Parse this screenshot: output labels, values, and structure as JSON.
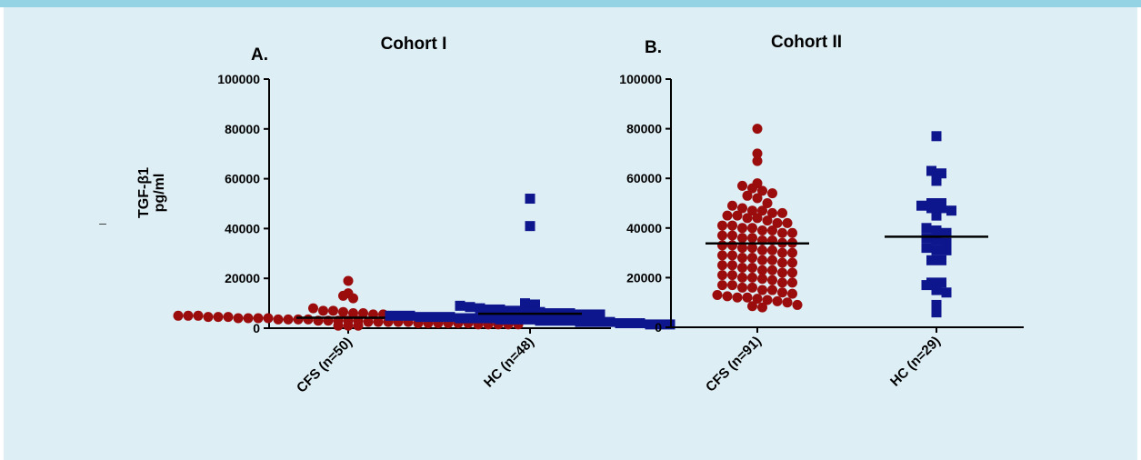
{
  "colors": {
    "background": "#ffffff",
    "panel": "#ddeef5",
    "top_bar": "#94d3e3",
    "cfs": "#9b0d0d",
    "hc": "#0e168e",
    "mean_line": "#000000"
  },
  "y_axis_title": [
    "TGF-β1",
    "pg/ml"
  ],
  "stray_mark": "–",
  "chart_data": [
    {
      "type": "scatter",
      "panel_label": "A.",
      "title": "Cohort I",
      "ylim": [
        0,
        100000
      ],
      "yticks": [
        "0",
        "20000",
        "40000",
        "60000",
        "80000",
        "100000"
      ],
      "categories": [
        "CFS (n=50)",
        "HC (n=48)"
      ],
      "series": [
        {
          "name": "CFS (n=50)",
          "marker": "circle",
          "mean": 4200,
          "values": [
            19000,
            14000,
            13000,
            12000,
            8000,
            7000,
            7000,
            6500,
            6000,
            6000,
            5500,
            5500,
            5000,
            5000,
            5000,
            4500,
            4500,
            4500,
            4000,
            4000,
            4000,
            4000,
            3500,
            3500,
            3500,
            3500,
            3000,
            3000,
            3000,
            3000,
            3000,
            2500,
            2500,
            2500,
            2500,
            2500,
            2000,
            2000,
            2000,
            2000,
            2000,
            2000,
            1500,
            1500,
            1500,
            1500,
            1500,
            1000,
            1000,
            1000
          ]
        },
        {
          "name": "HC (n=48)",
          "marker": "square",
          "mean": 5800,
          "values": [
            52000,
            41000,
            10000,
            9500,
            9000,
            8500,
            8000,
            7500,
            7500,
            7000,
            7000,
            6500,
            6500,
            6000,
            6000,
            6000,
            5500,
            5500,
            5500,
            5000,
            5000,
            5000,
            4500,
            4500,
            4500,
            4500,
            4000,
            4000,
            4000,
            4000,
            3500,
            3500,
            3500,
            3500,
            3000,
            3000,
            3000,
            3000,
            2500,
            2500,
            2500,
            2500,
            2000,
            2000,
            2000,
            1500,
            1500,
            1500
          ]
        }
      ]
    },
    {
      "type": "scatter",
      "panel_label": "B.",
      "title": "Cohort II",
      "ylim": [
        0,
        100000
      ],
      "yticks": [
        "0",
        "20000",
        "40000",
        "60000",
        "80000",
        "100000"
      ],
      "categories": [
        "CFS (n=91)",
        "HC (n=29)"
      ],
      "series": [
        {
          "name": "CFS (n=91)",
          "marker": "circle",
          "mean": 33800,
          "values": [
            80000,
            70000,
            67000,
            58000,
            57000,
            56000,
            55000,
            54000,
            53000,
            52000,
            50000,
            49000,
            48000,
            47000,
            47000,
            46000,
            46000,
            45000,
            45000,
            44000,
            44000,
            43000,
            42000,
            42000,
            41000,
            41000,
            40000,
            40000,
            39000,
            39000,
            38000,
            38000,
            37000,
            37000,
            36000,
            36000,
            35000,
            35000,
            34000,
            34000,
            33000,
            33000,
            32000,
            32000,
            31000,
            31000,
            30000,
            30000,
            29000,
            29000,
            28000,
            28000,
            27000,
            27000,
            26000,
            26000,
            25000,
            25000,
            24000,
            24000,
            23000,
            23000,
            22000,
            22000,
            21000,
            21000,
            20000,
            20000,
            19500,
            19000,
            18000,
            18000,
            17000,
            17000,
            16000,
            16000,
            15000,
            15000,
            14000,
            13500,
            13000,
            12500,
            12000,
            12000,
            11500,
            11000,
            10500,
            10000,
            9000,
            8500,
            8000
          ]
        },
        {
          "name": "HC (n=29)",
          "marker": "square",
          "mean": 36500,
          "values": [
            77000,
            63000,
            62000,
            59000,
            50000,
            50000,
            49000,
            48000,
            48000,
            47000,
            45000,
            40000,
            39000,
            38000,
            36000,
            35000,
            34000,
            32000,
            31000,
            31000,
            27000,
            27000,
            18000,
            18000,
            17000,
            15000,
            14000,
            9000,
            6000
          ]
        }
      ]
    }
  ]
}
